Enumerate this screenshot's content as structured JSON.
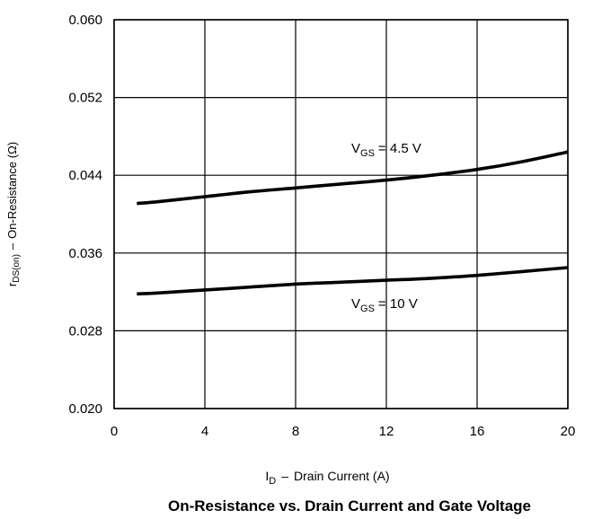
{
  "chart_data": {
    "type": "line",
    "title": "On-Resistance vs. Drain Current and Gate Voltage",
    "xlabel": {
      "symbol": "I",
      "subscript": "D",
      "text": "Drain Current (A)"
    },
    "ylabel": {
      "symbol": "r",
      "subscript": "DS(on)",
      "text": "On-Resistance (Ω)"
    },
    "xlim": [
      0,
      20
    ],
    "ylim": [
      0.02,
      0.06
    ],
    "xticks": [
      0,
      4,
      8,
      12,
      16,
      20
    ],
    "xtick_labels": [
      "0",
      "4",
      "8",
      "12",
      "16",
      "20"
    ],
    "yticks": [
      0.02,
      0.028,
      0.036,
      0.044,
      0.052,
      0.06
    ],
    "ytick_labels": [
      "0.020",
      "0.028",
      "0.036",
      "0.044",
      "0.052",
      "0.060"
    ],
    "grid": true,
    "series": [
      {
        "label": {
          "symbol": "V",
          "subscript": "GS",
          "value": "= 4.5 V"
        },
        "x": [
          1,
          2,
          4,
          6,
          8,
          10,
          12,
          14,
          16,
          18,
          20
        ],
        "y": [
          0.0411,
          0.0413,
          0.0418,
          0.0423,
          0.0427,
          0.0431,
          0.0435,
          0.044,
          0.0446,
          0.0454,
          0.0464
        ]
      },
      {
        "label": {
          "symbol": "V",
          "subscript": "GS",
          "value": "= 10 V"
        },
        "x": [
          1,
          2,
          4,
          6,
          8,
          10,
          12,
          14,
          16,
          18,
          20
        ],
        "y": [
          0.0318,
          0.0319,
          0.0322,
          0.0325,
          0.0328,
          0.033,
          0.0332,
          0.0334,
          0.0337,
          0.0341,
          0.0345
        ]
      }
    ]
  }
}
